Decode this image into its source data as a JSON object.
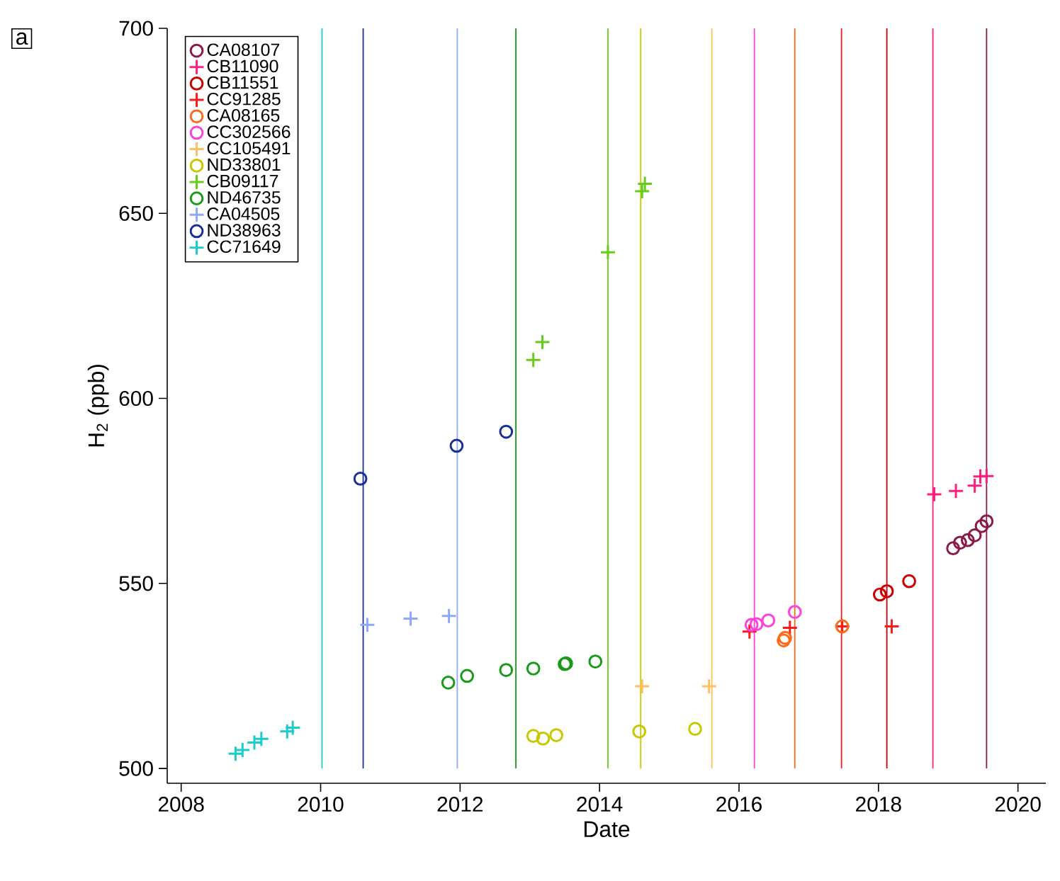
{
  "chart_data": {
    "type": "scatter",
    "xlabel": "Date",
    "ylabel": "H$_{2}$ (ppb)",
    "annotations": [
      "a"
    ],
    "xlim": [
      2007.8,
      2020.4
    ],
    "ylim": [
      496,
      700
    ],
    "xticks": [
      2008,
      2010,
      2012,
      2014,
      2016,
      2018,
      2020
    ],
    "yticks": [
      500,
      550,
      600,
      650,
      700
    ],
    "legend": "top left",
    "grid": false,
    "series": [
      {
        "name": "CA08107",
        "color": "#8b1a4a",
        "marker": "circle",
        "x": [
          2019.07,
          2019.17,
          2019.28,
          2019.38,
          2019.48,
          2019.55
        ],
        "values": [
          559.5,
          561,
          561.7,
          563,
          565.5,
          566.8
        ]
      },
      {
        "name": "CB11090",
        "color": "#ff1f7f",
        "marker": "cross",
        "x": [
          2018.8,
          2019.11,
          2019.38,
          2019.46,
          2019.55
        ],
        "values": [
          574.1,
          575,
          576.4,
          578.9,
          579
        ]
      },
      {
        "name": "CB11551",
        "color": "#cc0000",
        "marker": "circle",
        "x": [
          2018.02,
          2018.12,
          2018.44
        ],
        "values": [
          547,
          547.9,
          550.6
        ]
      },
      {
        "name": "CC91285",
        "color": "#ff1a1a",
        "marker": "cross",
        "x": [
          2016.15,
          2016.73,
          2017.48,
          2018.19
        ],
        "values": [
          537,
          538,
          538.4,
          538.4
        ]
      },
      {
        "name": "CA08165",
        "color": "#ff6a1a",
        "marker": "circle",
        "x": [
          2016.64,
          2016.66,
          2017.48
        ],
        "values": [
          534.6,
          535.3,
          538.4
        ]
      },
      {
        "name": "CC302566",
        "color": "#ff40e0",
        "marker": "circle",
        "x": [
          2016.18,
          2016.25,
          2016.42,
          2016.8
        ],
        "values": [
          538.8,
          539,
          540,
          542.3
        ]
      },
      {
        "name": "CC105491",
        "color": "#ffc060",
        "marker": "cross",
        "x": [
          2014.61,
          2015.57
        ],
        "values": [
          522.2,
          522.2
        ]
      },
      {
        "name": "ND33801",
        "color": "#c8c800",
        "marker": "circle",
        "x": [
          2013.05,
          2013.19,
          2013.38,
          2014.57,
          2015.37
        ],
        "values": [
          508.8,
          508.1,
          509,
          510,
          510.7
        ]
      },
      {
        "name": "CB09117",
        "color": "#66cc1a",
        "marker": "cross",
        "x": [
          2013.05,
          2013.18,
          2014.12,
          2014.61,
          2014.65
        ],
        "values": [
          610.4,
          615.2,
          639.5,
          656,
          658
        ]
      },
      {
        "name": "ND46735",
        "color": "#1a9a1a",
        "marker": "circle",
        "x": [
          2011.83,
          2012.1,
          2012.66,
          2013.05,
          2013.5,
          2013.52,
          2013.94
        ],
        "values": [
          523.2,
          525,
          526.6,
          527,
          528.2,
          528.4,
          528.9
        ]
      },
      {
        "name": "CA04505",
        "color": "#8fa8ff",
        "marker": "cross",
        "x": [
          2010.67,
          2011.29,
          2011.84
        ],
        "values": [
          538.8,
          540.5,
          541.2
        ]
      },
      {
        "name": "ND38963",
        "color": "#1a2f9a",
        "marker": "circle",
        "x": [
          2010.57,
          2011.95,
          2012.66
        ],
        "values": [
          578.3,
          587.2,
          591
        ]
      },
      {
        "name": "CC71649",
        "color": "#1acccc",
        "marker": "cross",
        "x": [
          2008.78,
          2008.88,
          2009.05,
          2009.15,
          2009.52,
          2009.6
        ],
        "values": [
          504,
          505,
          507,
          508,
          510,
          511
        ]
      }
    ],
    "ref_lines": [
      {
        "axis": "x",
        "value": 2019.55,
        "color": "#8b1a4a"
      },
      {
        "axis": "x",
        "value": 2018.78,
        "color": "#ff1f7f"
      },
      {
        "axis": "x",
        "value": 2018.12,
        "color": "#cc0000"
      },
      {
        "axis": "x",
        "value": 2017.47,
        "color": "#ff1a1a"
      },
      {
        "axis": "x",
        "value": 2016.8,
        "color": "#ff6a1a"
      },
      {
        "axis": "x",
        "value": 2016.22,
        "color": "#ff40e0"
      },
      {
        "axis": "x",
        "value": 2015.61,
        "color": "#ffc060"
      },
      {
        "axis": "x",
        "value": 2014.59,
        "color": "#c8c800"
      },
      {
        "axis": "x",
        "value": 2014.12,
        "color": "#66cc1a"
      },
      {
        "axis": "x",
        "value": 2012.8,
        "color": "#1a9a1a"
      },
      {
        "axis": "x",
        "value": 2011.96,
        "color": "#8fa8ff"
      },
      {
        "axis": "x",
        "value": 2010.61,
        "color": "#1a2f9a"
      },
      {
        "axis": "x",
        "value": 2010.02,
        "color": "#1acccc"
      }
    ]
  }
}
